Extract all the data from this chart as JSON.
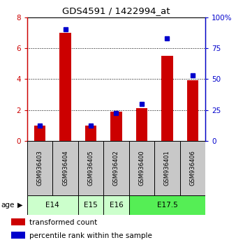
{
  "title": "GDS4591 / 1422994_at",
  "samples": [
    "GSM936403",
    "GSM936404",
    "GSM936405",
    "GSM936402",
    "GSM936400",
    "GSM936401",
    "GSM936406"
  ],
  "red_values": [
    1.0,
    7.0,
    1.0,
    1.9,
    2.1,
    5.5,
    3.9
  ],
  "blue_values": [
    12.5,
    90.0,
    12.5,
    22.5,
    30.0,
    83.0,
    53.0
  ],
  "age_groups": [
    {
      "label": "E14",
      "start": 0,
      "end": 2,
      "color": "#ccffcc"
    },
    {
      "label": "E15",
      "start": 2,
      "end": 3,
      "color": "#ccffcc"
    },
    {
      "label": "E16",
      "start": 3,
      "end": 4,
      "color": "#ccffcc"
    },
    {
      "label": "E17.5",
      "start": 4,
      "end": 7,
      "color": "#55ee55"
    }
  ],
  "ylim_left": [
    0,
    8
  ],
  "ylim_right": [
    0,
    100
  ],
  "yticks_left": [
    0,
    2,
    4,
    6,
    8
  ],
  "ytick_labels_left": [
    "0",
    "2",
    "4",
    "6",
    "8"
  ],
  "yticks_right": [
    0,
    25,
    50,
    75,
    100
  ],
  "ytick_labels_right": [
    "0",
    "25",
    "50",
    "75",
    "100%"
  ],
  "left_axis_color": "#cc0000",
  "right_axis_color": "#0000cc",
  "red_color": "#cc0000",
  "blue_color": "#0000cc",
  "bg_color": "#ffffff",
  "sample_bg": "#c8c8c8",
  "grid_dotted_at": [
    2,
    4,
    6
  ],
  "age_label": "age",
  "legend_items": [
    {
      "label": "transformed count",
      "color": "#cc0000"
    },
    {
      "label": "percentile rank within the sample",
      "color": "#0000cc"
    }
  ]
}
